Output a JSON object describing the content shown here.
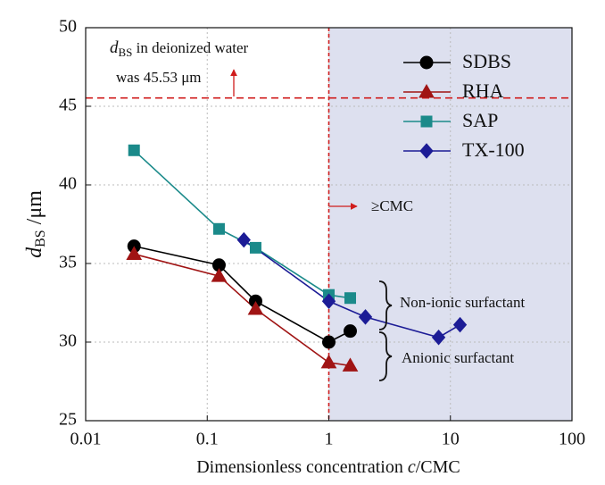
{
  "chart_data": {
    "type": "line",
    "x_label": {
      "prefix": "Dimensionless concentration ",
      "var": "c",
      "suffix": "/CMC"
    },
    "y_label": {
      "main": "d",
      "sub": "BS",
      "unit": " /μm"
    },
    "x_scale": "log",
    "xlim": [
      0.01,
      100
    ],
    "xticks": [
      0.01,
      0.1,
      1,
      10,
      100
    ],
    "ylim": [
      25,
      50
    ],
    "yticks": [
      25,
      30,
      35,
      40,
      45,
      50
    ],
    "grid": true,
    "legend_position": "upper right",
    "shade_color": "#dde0ef",
    "hline": 45.53,
    "vline": 1,
    "annotations": {
      "water_var": "d",
      "water_sub": "BS",
      "water_line1": " in deionized water",
      "water_line2": "was 45.53 μm",
      "cmc": "≥CMC",
      "nonionic": "Non-ionic surfactant",
      "anionic": "Anionic surfactant"
    },
    "series": [
      {
        "name": "SDBS",
        "color": "#000000",
        "marker": "circle",
        "x": [
          0.025,
          0.125,
          0.25,
          1,
          1.5
        ],
        "values": [
          36.1,
          34.9,
          32.6,
          30.0,
          30.7
        ]
      },
      {
        "name": "RHA",
        "color": "#a01414",
        "marker": "triangle",
        "x": [
          0.025,
          0.125,
          0.25,
          1,
          1.5
        ],
        "values": [
          35.6,
          34.2,
          32.1,
          28.7,
          28.5
        ]
      },
      {
        "name": "SAP",
        "color": "#1b8a8a",
        "marker": "square",
        "x": [
          0.025,
          0.125,
          0.25,
          1,
          1.5
        ],
        "values": [
          42.2,
          37.2,
          36.0,
          33.0,
          32.8
        ]
      },
      {
        "name": "TX-100",
        "color": "#1c1c96",
        "marker": "diamond",
        "x": [
          0.2,
          1,
          2,
          8,
          12
        ],
        "values": [
          36.5,
          32.6,
          31.6,
          30.3,
          31.1
        ]
      }
    ]
  }
}
